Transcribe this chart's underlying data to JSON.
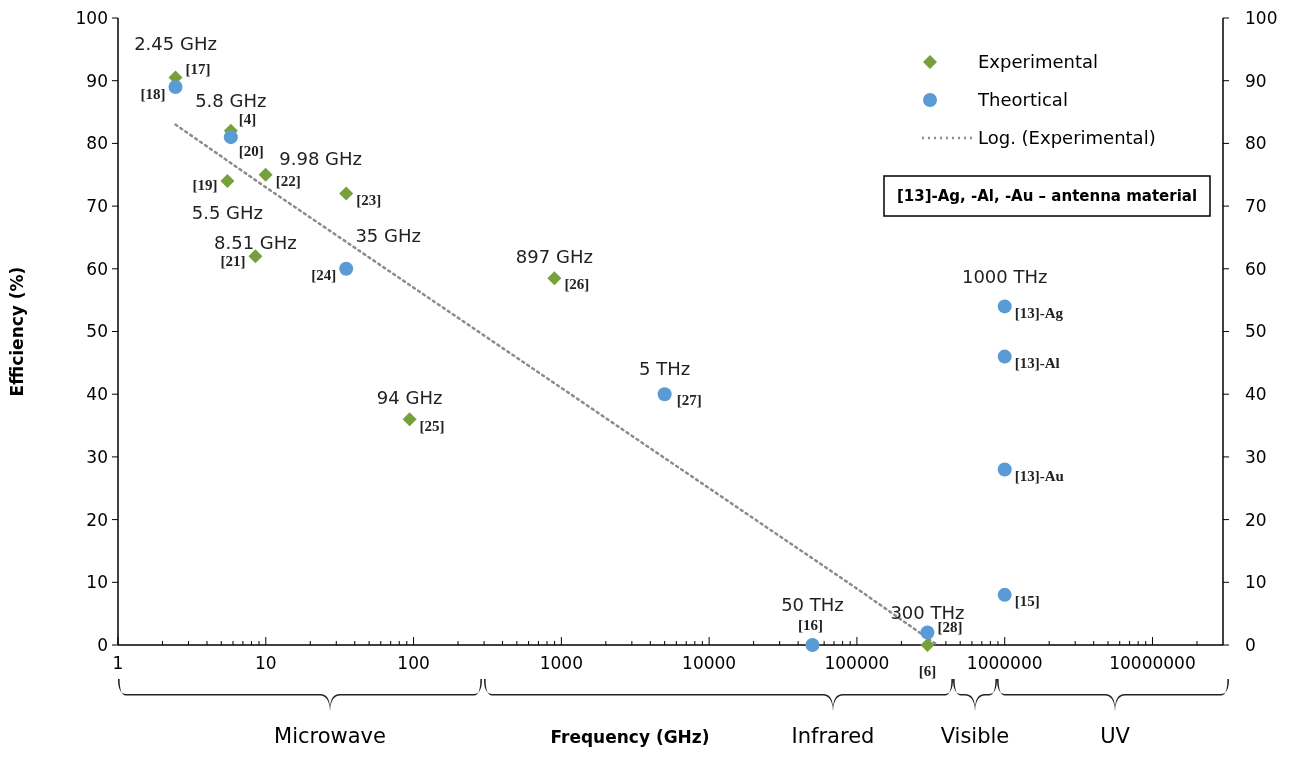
{
  "chart_data": {
    "type": "scatter",
    "xlabel": "Frequency (GHz)",
    "ylabel": "Efficiency (%)",
    "log": "x",
    "xlim": [
      1,
      30000000
    ],
    "xticks": [
      1,
      10,
      100,
      1000,
      10000,
      100000,
      1000000,
      10000000
    ],
    "ylim": [
      0,
      100
    ],
    "yticks": [
      0,
      10,
      20,
      30,
      40,
      50,
      60,
      70,
      80,
      90,
      100
    ],
    "y2lim": [
      0,
      100
    ],
    "y2ticks": [
      0,
      10,
      20,
      30,
      40,
      50,
      60,
      70,
      80,
      90,
      100
    ],
    "legend": "top right",
    "series": [
      {
        "name": "Experimental",
        "type": "scatter",
        "marker": "diamond",
        "color": "#77a03c",
        "x": [
          2.45,
          5.8,
          5.5,
          9.98,
          8.51,
          35,
          94,
          897,
          300000
        ],
        "values": [
          90.5,
          82,
          74,
          75,
          62,
          72,
          36,
          58.5,
          0
        ]
      },
      {
        "name": "Theortical",
        "type": "scatter",
        "marker": "circle",
        "color": "#5b9bd5",
        "x": [
          2.45,
          5.8,
          35,
          5000,
          50000,
          300000,
          1000000,
          1000000,
          1000000,
          1000000
        ],
        "values": [
          89,
          81,
          60,
          40,
          0,
          2,
          54,
          46,
          28,
          8
        ]
      },
      {
        "name": "Log. (Experimental)",
        "type": "line",
        "marker": "none",
        "line_style": "dotted",
        "color": "#8c8c8c",
        "x": [
          2.45,
          10,
          100,
          1000,
          10000,
          100000,
          350000
        ],
        "values": [
          83,
          73,
          57,
          41,
          25,
          9,
          0
        ]
      }
    ],
    "annotations": [
      "Microwave",
      "Infrared",
      "Visible",
      "UV",
      {
        "text": "2.45 GHz",
        "x": 2.45,
        "y": 90.5
      },
      {
        "text": "[17]",
        "x": 2.45,
        "y": 90.5
      },
      {
        "text": "[18]",
        "x": 2.45,
        "y": 89
      },
      {
        "text": "5.8 GHz",
        "x": 5.8,
        "y": 82
      },
      {
        "text": "[4]",
        "x": 5.8,
        "y": 82
      },
      {
        "text": "[20]",
        "x": 5.8,
        "y": 81
      },
      {
        "text": "9.98 GHz",
        "x": 9.98,
        "y": 75
      },
      {
        "text": "[22]",
        "x": 9.98,
        "y": 75
      },
      {
        "text": "[19]",
        "x": 5.5,
        "y": 74
      },
      {
        "text": "5.5 GHz",
        "x": 5.5,
        "y": 74
      },
      {
        "text": "8.51 GHz",
        "x": 8.51,
        "y": 62
      },
      {
        "text": "[21]",
        "x": 8.51,
        "y": 62
      },
      {
        "text": "[23]",
        "x": 35,
        "y": 72
      },
      {
        "text": "35 GHz",
        "x": 35,
        "y": 60
      },
      {
        "text": "[24]",
        "x": 35,
        "y": 60
      },
      {
        "text": "94 GHz",
        "x": 94,
        "y": 36
      },
      {
        "text": "[25]",
        "x": 94,
        "y": 36
      },
      {
        "text": "897 GHz",
        "x": 897,
        "y": 58.5
      },
      {
        "text": "[26]",
        "x": 897,
        "y": 58.5
      },
      {
        "text": "5 THz",
        "x": 5000,
        "y": 40
      },
      {
        "text": "[27]",
        "x": 5000,
        "y": 40
      },
      {
        "text": "50 THz",
        "x": 50000,
        "y": 0
      },
      {
        "text": "[16]",
        "x": 50000,
        "y": 0
      },
      {
        "text": "300 THz",
        "x": 300000,
        "y": 2
      },
      {
        "text": "[28]",
        "x": 300000,
        "y": 2
      },
      {
        "text": "[6]",
        "x": 300000,
        "y": 0
      },
      {
        "text": "1000 THz",
        "x": 1000000,
        "y": 54
      },
      {
        "text": "[13]-Ag",
        "x": 1000000,
        "y": 54
      },
      {
        "text": "[13]-Al",
        "x": 1000000,
        "y": 46
      },
      {
        "text": "[13]-Au",
        "x": 1000000,
        "y": 28
      },
      {
        "text": "[15]",
        "x": 1000000,
        "y": 8
      },
      "[13]-Ag, -Al, -Au – antenna material"
    ]
  }
}
